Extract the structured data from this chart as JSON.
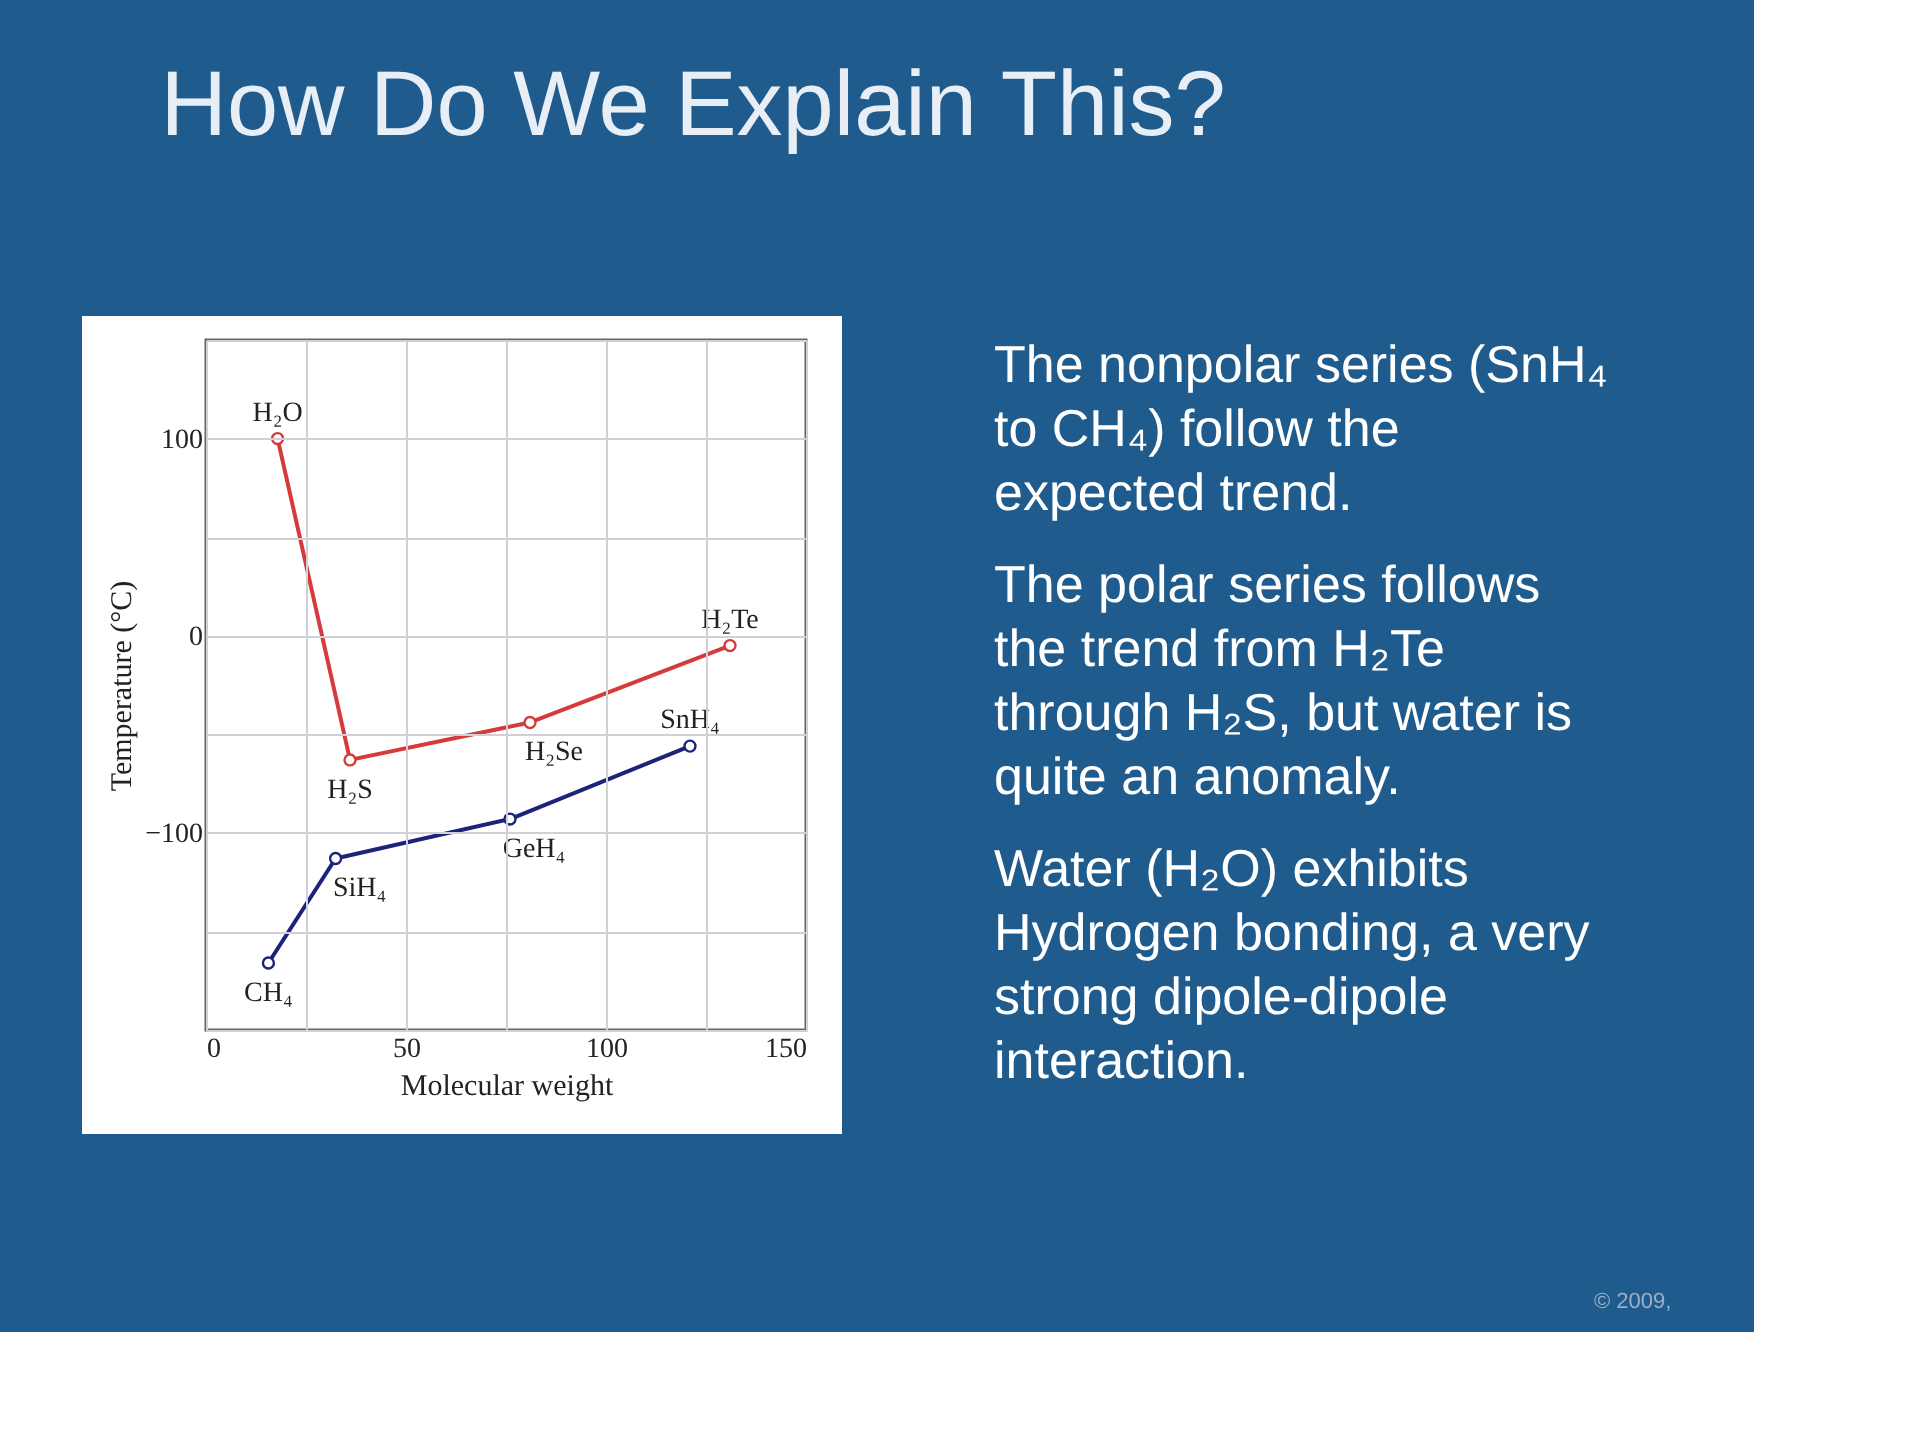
{
  "chart_data": {
    "type": "line",
    "title": "How Do We Explain This?",
    "xlabel": "Molecular weight",
    "ylabel": "Temperature (°C)",
    "series": [
      {
        "color": "#d63b3b",
        "x": [
          17.9,
          36,
          81,
          131
        ],
        "values": [
          100,
          -63,
          -44,
          -5
        ]
      },
      {
        "color": "#1b237a",
        "x": [
          15.6,
          32.4,
          76,
          121
        ],
        "values": [
          -166,
          -113,
          -93,
          -56
        ]
      }
    ],
    "xlim": [
      0,
      150
    ],
    "ylim": [
      -200,
      150
    ],
    "xticks": [
      0,
      {
        "value": 25,
        "label": null
      },
      50,
      {
        "value": 75,
        "label": null
      },
      100,
      {
        "value": 125,
        "label": null
      },
      150
    ],
    "yticks": [
      {
        "value": -200,
        "label": null
      },
      {
        "value": -150,
        "label": null
      },
      {
        "value": -100,
        "label": "−100"
      },
      {
        "value": -50,
        "label": null
      },
      0,
      {
        "value": 50,
        "label": null
      },
      100,
      {
        "value": 150,
        "label": null
      }
    ],
    "grid": true,
    "marker": "circle",
    "line_style": "solid",
    "annotations": [
      {
        "text": "H₂O",
        "x": 17.9,
        "y": 100
      },
      {
        "text": "H₂S",
        "x": 36,
        "y": -63
      },
      {
        "text": "H₂Se",
        "x": 81,
        "y": -44
      },
      {
        "text": "H₂Te",
        "x": 131,
        "y": -5
      },
      {
        "text": "CH₄",
        "x": 15.6,
        "y": -166
      },
      {
        "text": "SiH₄",
        "x": 32.4,
        "y": -113
      },
      {
        "text": "GeH₄",
        "x": 76,
        "y": -93
      },
      {
        "text": "SnH₄",
        "x": 121,
        "y": -56
      },
      "The nonpolar series (SnH₄ to CH₄) follow the expected trend.",
      "The polar series follows the trend from H₂Te through H₂S, but water is quite an anomaly.",
      "Water (H₂O) exhibits Hydrogen bonding, a very strong dipole-dipole interaction.",
      "© 2009,"
    ]
  }
}
